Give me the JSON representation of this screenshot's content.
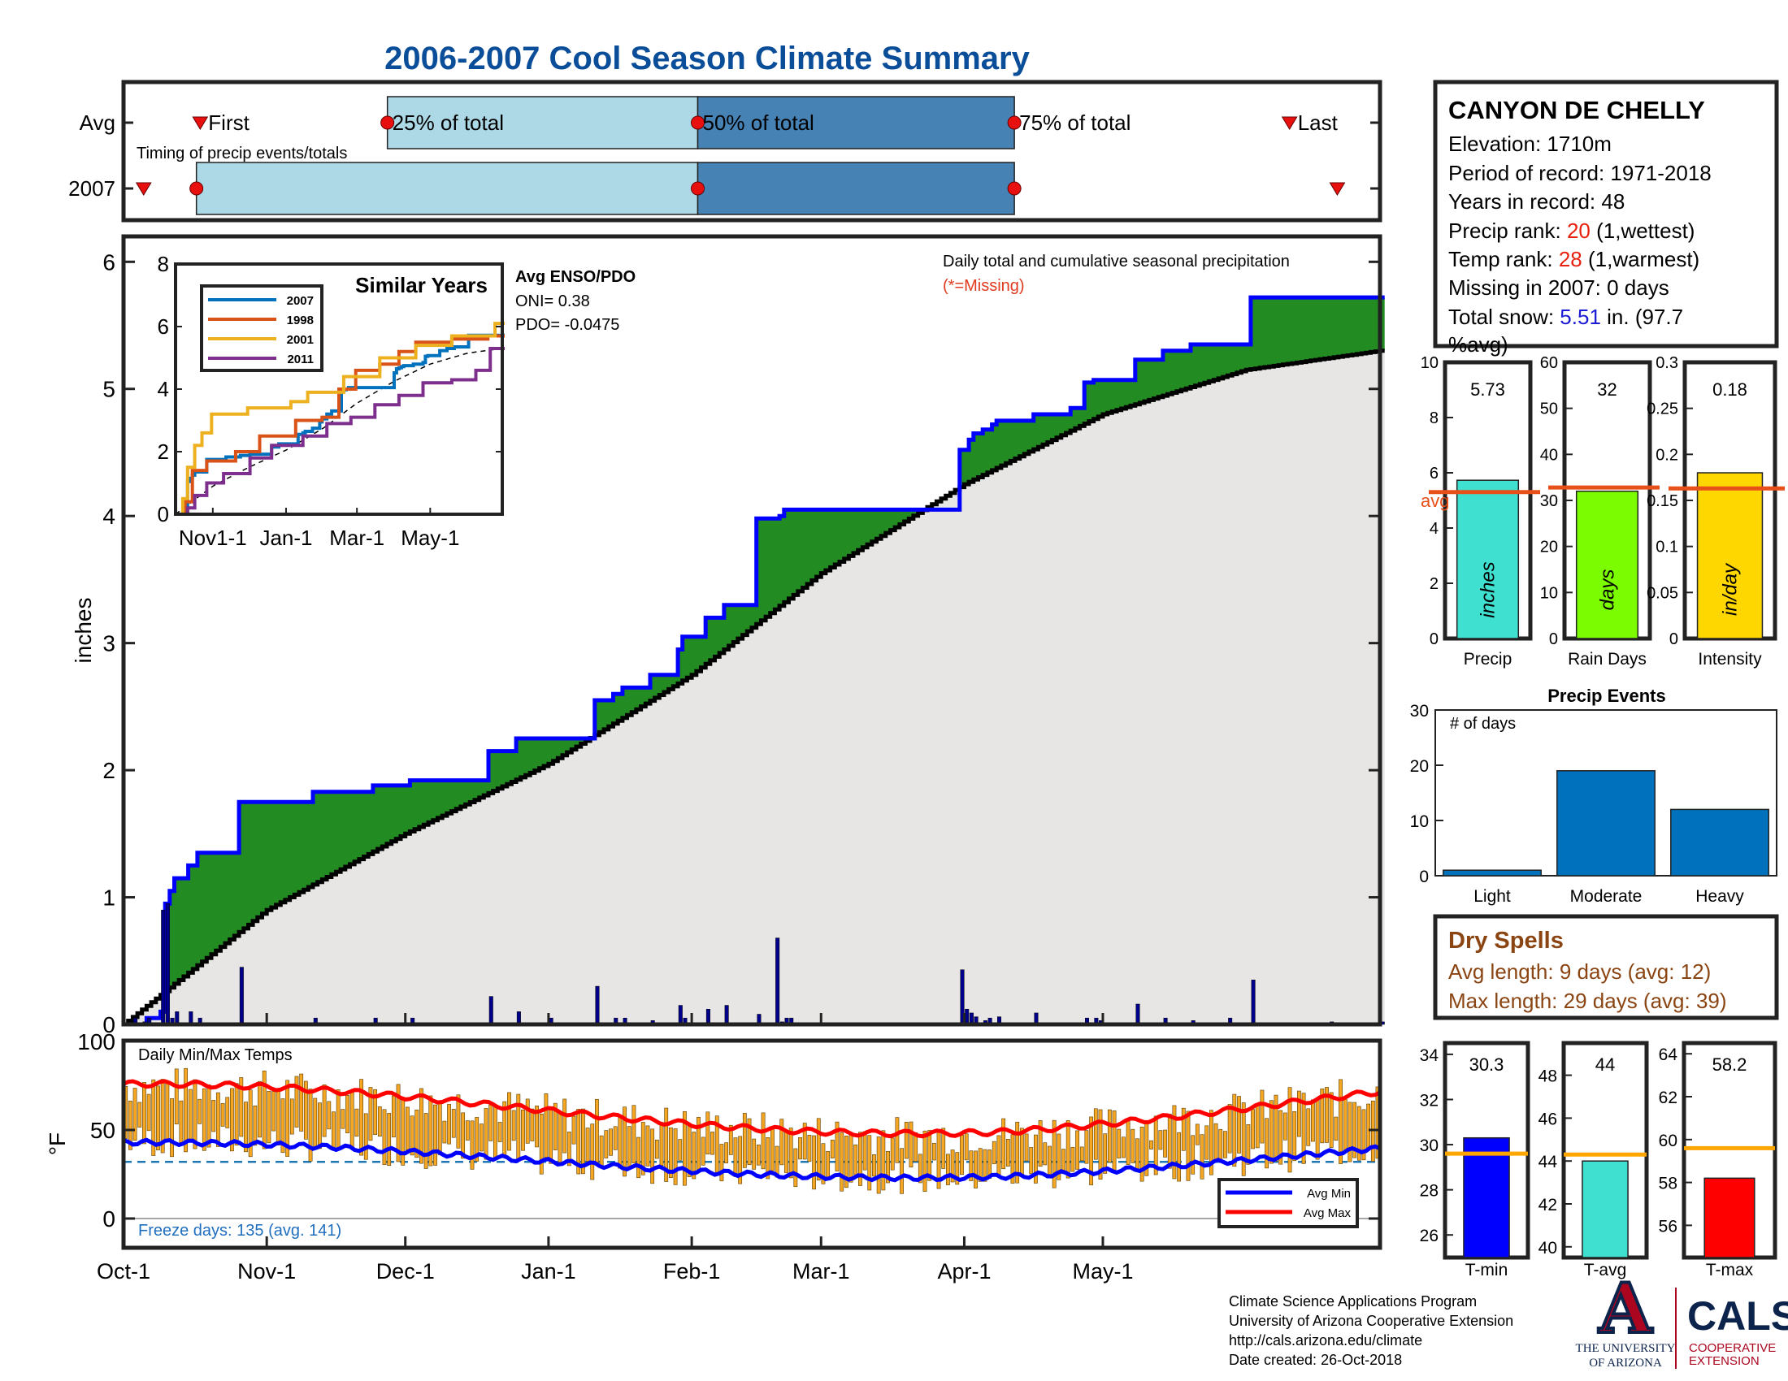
{
  "title": "2006-2007 Cool Season Climate Summary",
  "timing": {
    "row_labels": [
      "Avg",
      "2007"
    ],
    "subtitle": "Timing of precip events/totals",
    "avg": {
      "first": 0.061,
      "q25": 0.21,
      "q50": 0.457,
      "q75": 0.709,
      "last": 0.928
    },
    "y2007": {
      "first": 0.016,
      "q25": 0.058,
      "q50": 0.457,
      "q75": 0.709,
      "last": 0.966
    },
    "marker_labels": {
      "first": "First",
      "q25": "25% of total",
      "q50": "50% of total",
      "q75": "75% of total",
      "last": "Last"
    },
    "colors": {
      "light": "#add8e6",
      "dark": "#4682b4"
    }
  },
  "main": {
    "ylabel": "inches",
    "note": "Daily total and cumulative seasonal precipitation",
    "missing_note": "(*=Missing)",
    "yticks": [
      0,
      1,
      2,
      3,
      4,
      5,
      6
    ],
    "colors": {
      "cumulative": "#0000ff",
      "avg_cumulative": "#000000",
      "above_avg": "#228b22",
      "avg_fill": "#e8e6e5",
      "daily": "#00008b"
    }
  },
  "similar_years": {
    "title": "Similar Years",
    "xticks": [
      "Nov1-1",
      "Jan-1",
      "Mar-1",
      "May-1"
    ],
    "yticks": [
      0,
      2,
      4,
      6,
      8
    ],
    "legend": [
      {
        "name": "2007",
        "color": "#0072bd"
      },
      {
        "name": "1998",
        "color": "#d95319"
      },
      {
        "name": "2001",
        "color": "#edb120"
      },
      {
        "name": "2011",
        "color": "#7e2f8e"
      }
    ]
  },
  "enso": {
    "title": "Avg ENSO/PDO",
    "oni": "ONI= 0.38",
    "pdo": "PDO= -0.0475"
  },
  "station": {
    "name": "CANYON DE CHELLY",
    "elevation": "Elevation: 1710m",
    "period": "Period of record: 1971-2018",
    "years": "Years in record: 48",
    "precip_rank_label": "Precip rank: ",
    "precip_rank_value": "20",
    "precip_rank_note": " (1,wettest)",
    "temp_rank_label": "Temp rank: ",
    "temp_rank_value": "28",
    "temp_rank_note": " (1,warmest)",
    "missing": "Missing in 2007: 0 days",
    "snow_label": "Total snow: ",
    "snow_value": "5.51",
    "snow_rest_1": " in. (97.7",
    "snow_rest_2": "%avg)"
  },
  "summary_bars": [
    {
      "label": "Precip",
      "unit": "inches",
      "value_text": "5.73",
      "value": 5.73,
      "avg": 5.3,
      "ylim": [
        0,
        10
      ],
      "yticks": [
        "0",
        "2",
        "4",
        "6",
        "8",
        "10"
      ],
      "tickvals": [
        0,
        2,
        4,
        6,
        8,
        10
      ],
      "color": "#40e0d0",
      "avg_text": "avg"
    },
    {
      "label": "Rain Days",
      "unit": "days",
      "value_text": "32",
      "value": 32,
      "avg": 32.8,
      "ylim": [
        0,
        60
      ],
      "yticks": [
        "0",
        "10",
        "20",
        "30",
        "40",
        "50",
        "60"
      ],
      "tickvals": [
        0,
        10,
        20,
        30,
        40,
        50,
        60
      ],
      "color": "#7cfc00"
    },
    {
      "label": "Intensity",
      "unit": "in/day",
      "value_text": "0.18",
      "value": 0.18,
      "avg": 0.163,
      "ylim": [
        0,
        0.3
      ],
      "yticks": [
        "0",
        "0.05",
        "0.1",
        "0.15",
        "0.2",
        "0.25",
        "0.3"
      ],
      "tickvals": [
        0,
        0.05,
        0.1,
        0.15,
        0.2,
        0.25,
        0.3
      ],
      "color": "#ffd700"
    }
  ],
  "precip_events": {
    "title": "Precip Events",
    "ylabel": "# of days",
    "categories": [
      "Light",
      "Moderate",
      "Heavy"
    ],
    "values": [
      1,
      19,
      12
    ],
    "ylim": [
      0,
      30
    ],
    "yticks": [
      0,
      10,
      20,
      30
    ],
    "color": "#0072bd"
  },
  "dry_spells": {
    "title": "Dry Spells",
    "avg_length": "Avg length: 9 days (avg: 12)",
    "max_length": "Max length: 29 days (avg: 39)"
  },
  "temps": {
    "title": "Daily Min/Max Temps",
    "ylabel": "°F",
    "yticks": [
      0,
      50,
      100
    ],
    "freeze_line": 32,
    "freeze_text": "Freeze days: 135 (avg. 141)",
    "legend": [
      {
        "name": "Avg Min",
        "color": "#0000ff"
      },
      {
        "name": "Avg Max",
        "color": "#ff0000"
      }
    ],
    "bar_color": "#f5a623"
  },
  "temp_bars": [
    {
      "label": "T-min",
      "value_text": "30.3",
      "value": 30.3,
      "avg": 29.6,
      "ylim": [
        25,
        34.5
      ],
      "ticks": [
        26,
        28,
        30,
        32,
        34
      ],
      "color": "#0000ff"
    },
    {
      "label": "T-avg",
      "value_text": "44",
      "value": 44.0,
      "avg": 44.3,
      "ylim": [
        39.5,
        49.5
      ],
      "ticks": [
        40,
        42,
        44,
        46,
        48
      ],
      "color": "#40e0d0"
    },
    {
      "label": "T-max",
      "value_text": "58.2",
      "value": 58.2,
      "avg": 59.6,
      "ylim": [
        54.5,
        64.5
      ],
      "ticks": [
        56,
        58,
        60,
        62,
        64
      ],
      "color": "#ff0000"
    }
  ],
  "x_axis": {
    "labels": [
      "Oct-1",
      "Nov-1",
      "Dec-1",
      "Jan-1",
      "Feb-1",
      "Mar-1",
      "Apr-1",
      "May-1"
    ],
    "days": [
      0,
      31,
      61,
      92,
      123,
      151,
      182,
      212
    ]
  },
  "footer": [
    "Climate Science Applications Program",
    "University of Arizona Cooperative Extension",
    "http://cals.arizona.edu/climate",
    " Date created: 26-Oct-2018"
  ],
  "logos": {
    "ua_letter": "A",
    "ua_text_1": "THE UNIVERSITY",
    "ua_text_2": "OF ARIZONA",
    "cals": "CALS",
    "cals_sub_1": "COOPERATIVE",
    "cals_sub_2": "EXTENSION"
  },
  "chart_data": {
    "type": "area",
    "title": "2006-2007 Cool Season Climate Summary",
    "xlabel": "",
    "ylabel": "inches",
    "ylim": [
      0,
      6.2
    ],
    "x_dates": [
      "2006-10-01",
      "2006-10-05",
      "2006-10-06",
      "2006-10-09",
      "2006-10-10",
      "2006-10-11",
      "2006-10-12",
      "2006-10-15",
      "2006-10-17",
      "2006-10-26",
      "2006-11-11",
      "2006-11-24",
      "2006-12-02",
      "2006-12-19",
      "2006-12-25",
      "2007-01-11",
      "2007-01-15",
      "2007-01-17",
      "2007-01-23",
      "2007-01-29",
      "2007-01-30",
      "2007-02-04",
      "2007-02-08",
      "2007-02-15",
      "2007-02-20",
      "2007-02-21",
      "2007-02-22",
      "2007-03-31",
      "2007-03-31",
      "2007-04-02",
      "2007-04-03",
      "2007-04-05",
      "2007-04-07",
      "2007-04-08",
      "2007-04-16",
      "2007-04-24",
      "2007-04-27",
      "2007-04-29",
      "2007-05-08",
      "2007-05-14",
      "2007-05-20",
      "2007-05-26",
      "2007-06-02",
      "2007-06-16",
      "2007-06-30"
    ],
    "series": [
      {
        "name": "",
        "values": [
          0.0,
          0.0,
          0.05,
          0.1,
          0.95,
          1.05,
          1.15,
          1.25,
          1.35,
          1.75,
          1.83,
          1.88,
          1.92,
          2.15,
          2.25,
          2.55,
          2.6,
          2.65,
          2.75,
          2.95,
          3.05,
          3.2,
          3.3,
          3.98,
          4.0,
          4.05,
          4.05,
          4.05,
          4.52,
          4.6,
          4.65,
          4.68,
          4.72,
          4.75,
          4.8,
          4.85,
          5.05,
          5.07,
          5.23,
          5.3,
          5.35,
          5.35,
          5.72,
          5.72,
          5.72
        ]
      },
      {
        "name": "",
        "x": [
          "2006-10-01",
          "2006-11-01",
          "2006-12-01",
          "2007-01-01",
          "2007-02-01",
          "2007-03-01",
          "2007-04-01",
          "2007-05-01",
          "2007-06-01",
          "2007-06-30"
        ],
        "values": [
          0.0,
          0.9,
          1.5,
          2.05,
          2.75,
          3.55,
          4.25,
          4.8,
          5.15,
          5.3
        ]
      }
    ],
    "daily_precip": {
      "x": [
        "2006-10-03",
        "2006-10-05",
        "2006-10-06",
        "2006-10-09",
        "2006-10-10",
        "2006-10-11",
        "2006-10-12",
        "2006-10-15",
        "2006-10-17",
        "2006-10-26",
        "2006-11-11",
        "2006-11-24",
        "2006-12-02",
        "2006-12-19",
        "2006-12-25",
        "2007-01-01",
        "2007-01-11",
        "2007-01-15",
        "2007-01-17",
        "2007-01-23",
        "2007-01-29",
        "2007-01-30",
        "2007-02-04",
        "2007-02-08",
        "2007-02-15",
        "2007-02-19",
        "2007-02-20",
        "2007-02-21",
        "2007-02-22",
        "2007-03-31",
        "2007-04-01",
        "2007-04-02",
        "2007-04-03",
        "2007-04-05",
        "2007-04-06",
        "2007-04-08",
        "2007-04-16",
        "2007-04-27",
        "2007-04-29",
        "2007-04-30",
        "2007-05-08",
        "2007-05-14",
        "2007-05-20",
        "2007-05-28",
        "2007-06-02",
        "2007-06-19",
        "2007-06-30"
      ],
      "values": [
        0.05,
        0.02,
        0.05,
        0.9,
        0.95,
        0.05,
        0.1,
        0.1,
        0.05,
        0.45,
        0.05,
        0.05,
        0.05,
        0.22,
        0.1,
        0.05,
        0.3,
        0.05,
        0.05,
        0.03,
        0.15,
        0.05,
        0.12,
        0.15,
        0.08,
        0.68,
        0.02,
        0.05,
        0.05,
        0.43,
        0.12,
        0.09,
        0.06,
        0.03,
        0.05,
        0.06,
        0.09,
        0.05,
        0.05,
        0.03,
        0.16,
        0.05,
        0.03,
        0.05,
        0.35,
        0.02,
        0.02
      ]
    }
  }
}
